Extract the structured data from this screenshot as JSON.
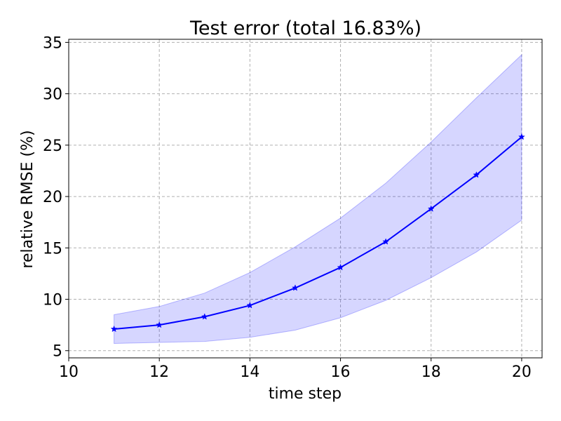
{
  "chart_data": {
    "type": "line",
    "title": "Test error (total 16.83%)",
    "xlabel": "time step",
    "ylabel": "relative RMSE (%)",
    "xlim": [
      10,
      20.45
    ],
    "ylim": [
      4.3,
      35.3
    ],
    "xticks": [
      10,
      12,
      14,
      16,
      18,
      20
    ],
    "yticks": [
      5,
      10,
      15,
      20,
      25,
      30,
      35
    ],
    "grid": true,
    "series": [
      {
        "name": "mean",
        "x": [
          11,
          12,
          13,
          14,
          15,
          16,
          17,
          18,
          19,
          20
        ],
        "y": [
          7.1,
          7.5,
          8.3,
          9.4,
          11.1,
          13.1,
          15.6,
          18.8,
          22.1,
          25.8
        ],
        "color": "#0000ff",
        "marker": "star"
      }
    ],
    "band": {
      "x": [
        11,
        12,
        13,
        14,
        15,
        16,
        17,
        18,
        19,
        20
      ],
      "lower": [
        5.7,
        5.8,
        5.9,
        6.3,
        7.0,
        8.2,
        9.9,
        12.1,
        14.6,
        17.7
      ],
      "upper": [
        8.5,
        9.3,
        10.6,
        12.6,
        15.1,
        17.9,
        21.3,
        25.3,
        29.6,
        33.8
      ],
      "color": "#0000ff",
      "opacity": 0.16
    }
  }
}
